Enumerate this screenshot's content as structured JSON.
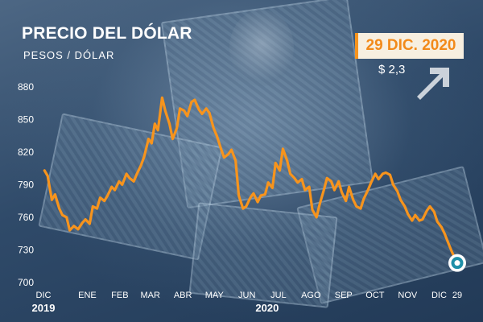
{
  "header": {
    "title": "PRECIO DEL DÓLAR",
    "subtitle": "PESOS / DÓLAR",
    "date_badge": "29 DIC. 2020",
    "change": "$ 2,3"
  },
  "colors": {
    "line": "#f7941d",
    "badge_text": "#f28a1a",
    "background": "#2f4a69",
    "end_marker": "#1e8fa8"
  },
  "icons": {
    "trend": "arrow-up-right-icon",
    "end": "end-point-marker"
  },
  "chart_data": {
    "type": "line",
    "title": "PRECIO DEL DÓLAR",
    "ylabel": "PESOS / DÓLAR",
    "ylim": [
      700,
      885
    ],
    "yticks": [
      700,
      730,
      760,
      790,
      820,
      850,
      880
    ],
    "xticks": [
      "DIC",
      "ENE",
      "FEB",
      "MAR",
      "ABR",
      "MAY",
      "JUN",
      "JUL",
      "AGO",
      "SEP",
      "OCT",
      "NOV",
      "DIC",
      "29"
    ],
    "years": [
      "2019",
      "2020"
    ],
    "grid": false,
    "series": [
      {
        "x": [
          "2019-12-02",
          "2019-12-05",
          "2019-12-09",
          "2019-12-12",
          "2019-12-16",
          "2019-12-19",
          "2019-12-23",
          "2019-12-26",
          "2019-12-30",
          "2020-01-03",
          "2020-01-07",
          "2020-01-10",
          "2020-01-14",
          "2020-01-17",
          "2020-01-21",
          "2020-01-24",
          "2020-01-28",
          "2020-01-31",
          "2020-02-04",
          "2020-02-07",
          "2020-02-11",
          "2020-02-14",
          "2020-02-18",
          "2020-02-21",
          "2020-02-25",
          "2020-02-28",
          "2020-03-03",
          "2020-03-06",
          "2020-03-10",
          "2020-03-13",
          "2020-03-16",
          "2020-03-19",
          "2020-03-23",
          "2020-03-26",
          "2020-03-30",
          "2020-04-02",
          "2020-04-06",
          "2020-04-09",
          "2020-04-13",
          "2020-04-16",
          "2020-04-20",
          "2020-04-23",
          "2020-04-27",
          "2020-04-30",
          "2020-05-04",
          "2020-05-07",
          "2020-05-11",
          "2020-05-14",
          "2020-05-18",
          "2020-05-21",
          "2020-05-25",
          "2020-05-28",
          "2020-06-01",
          "2020-06-04",
          "2020-06-08",
          "2020-06-11",
          "2020-06-15",
          "2020-06-18",
          "2020-06-22",
          "2020-06-25",
          "2020-06-29",
          "2020-07-02",
          "2020-07-06",
          "2020-07-09",
          "2020-07-13",
          "2020-07-16",
          "2020-07-20",
          "2020-07-23",
          "2020-07-27",
          "2020-07-30",
          "2020-08-03",
          "2020-08-06",
          "2020-08-10",
          "2020-08-13",
          "2020-08-17",
          "2020-08-20",
          "2020-08-24",
          "2020-08-27",
          "2020-08-31",
          "2020-09-03",
          "2020-09-07",
          "2020-09-10",
          "2020-09-14",
          "2020-09-17",
          "2020-09-21",
          "2020-09-24",
          "2020-09-28",
          "2020-10-01",
          "2020-10-05",
          "2020-10-08",
          "2020-10-12",
          "2020-10-15",
          "2020-10-19",
          "2020-10-22",
          "2020-10-26",
          "2020-10-29",
          "2020-11-02",
          "2020-11-05",
          "2020-11-09",
          "2020-11-12",
          "2020-11-16",
          "2020-11-19",
          "2020-11-23",
          "2020-11-26",
          "2020-11-30",
          "2020-12-03",
          "2020-12-07",
          "2020-12-10",
          "2020-12-14",
          "2020-12-17",
          "2020-12-21",
          "2020-12-24",
          "2020-12-29"
        ],
        "values": [
          803,
          798,
          776,
          781,
          768,
          762,
          760,
          748,
          752,
          749,
          755,
          758,
          754,
          770,
          768,
          778,
          775,
          780,
          788,
          785,
          793,
          790,
          800,
          796,
          793,
          800,
          808,
          816,
          832,
          828,
          846,
          840,
          870,
          858,
          846,
          832,
          842,
          860,
          858,
          853,
          866,
          868,
          859,
          855,
          860,
          856,
          842,
          835,
          823,
          815,
          818,
          822,
          812,
          780,
          768,
          770,
          778,
          782,
          774,
          780,
          781,
          792,
          787,
          810,
          803,
          823,
          812,
          800,
          796,
          792,
          795,
          785,
          788,
          767,
          760,
          772,
          785,
          796,
          793,
          785,
          793,
          783,
          775,
          788,
          776,
          770,
          768,
          777,
          785,
          792,
          800,
          795,
          800,
          801,
          799,
          790,
          784,
          776,
          770,
          763,
          757,
          762,
          757,
          758,
          766,
          770,
          765,
          756,
          751,
          745,
          735,
          728,
          718
        ]
      }
    ]
  }
}
